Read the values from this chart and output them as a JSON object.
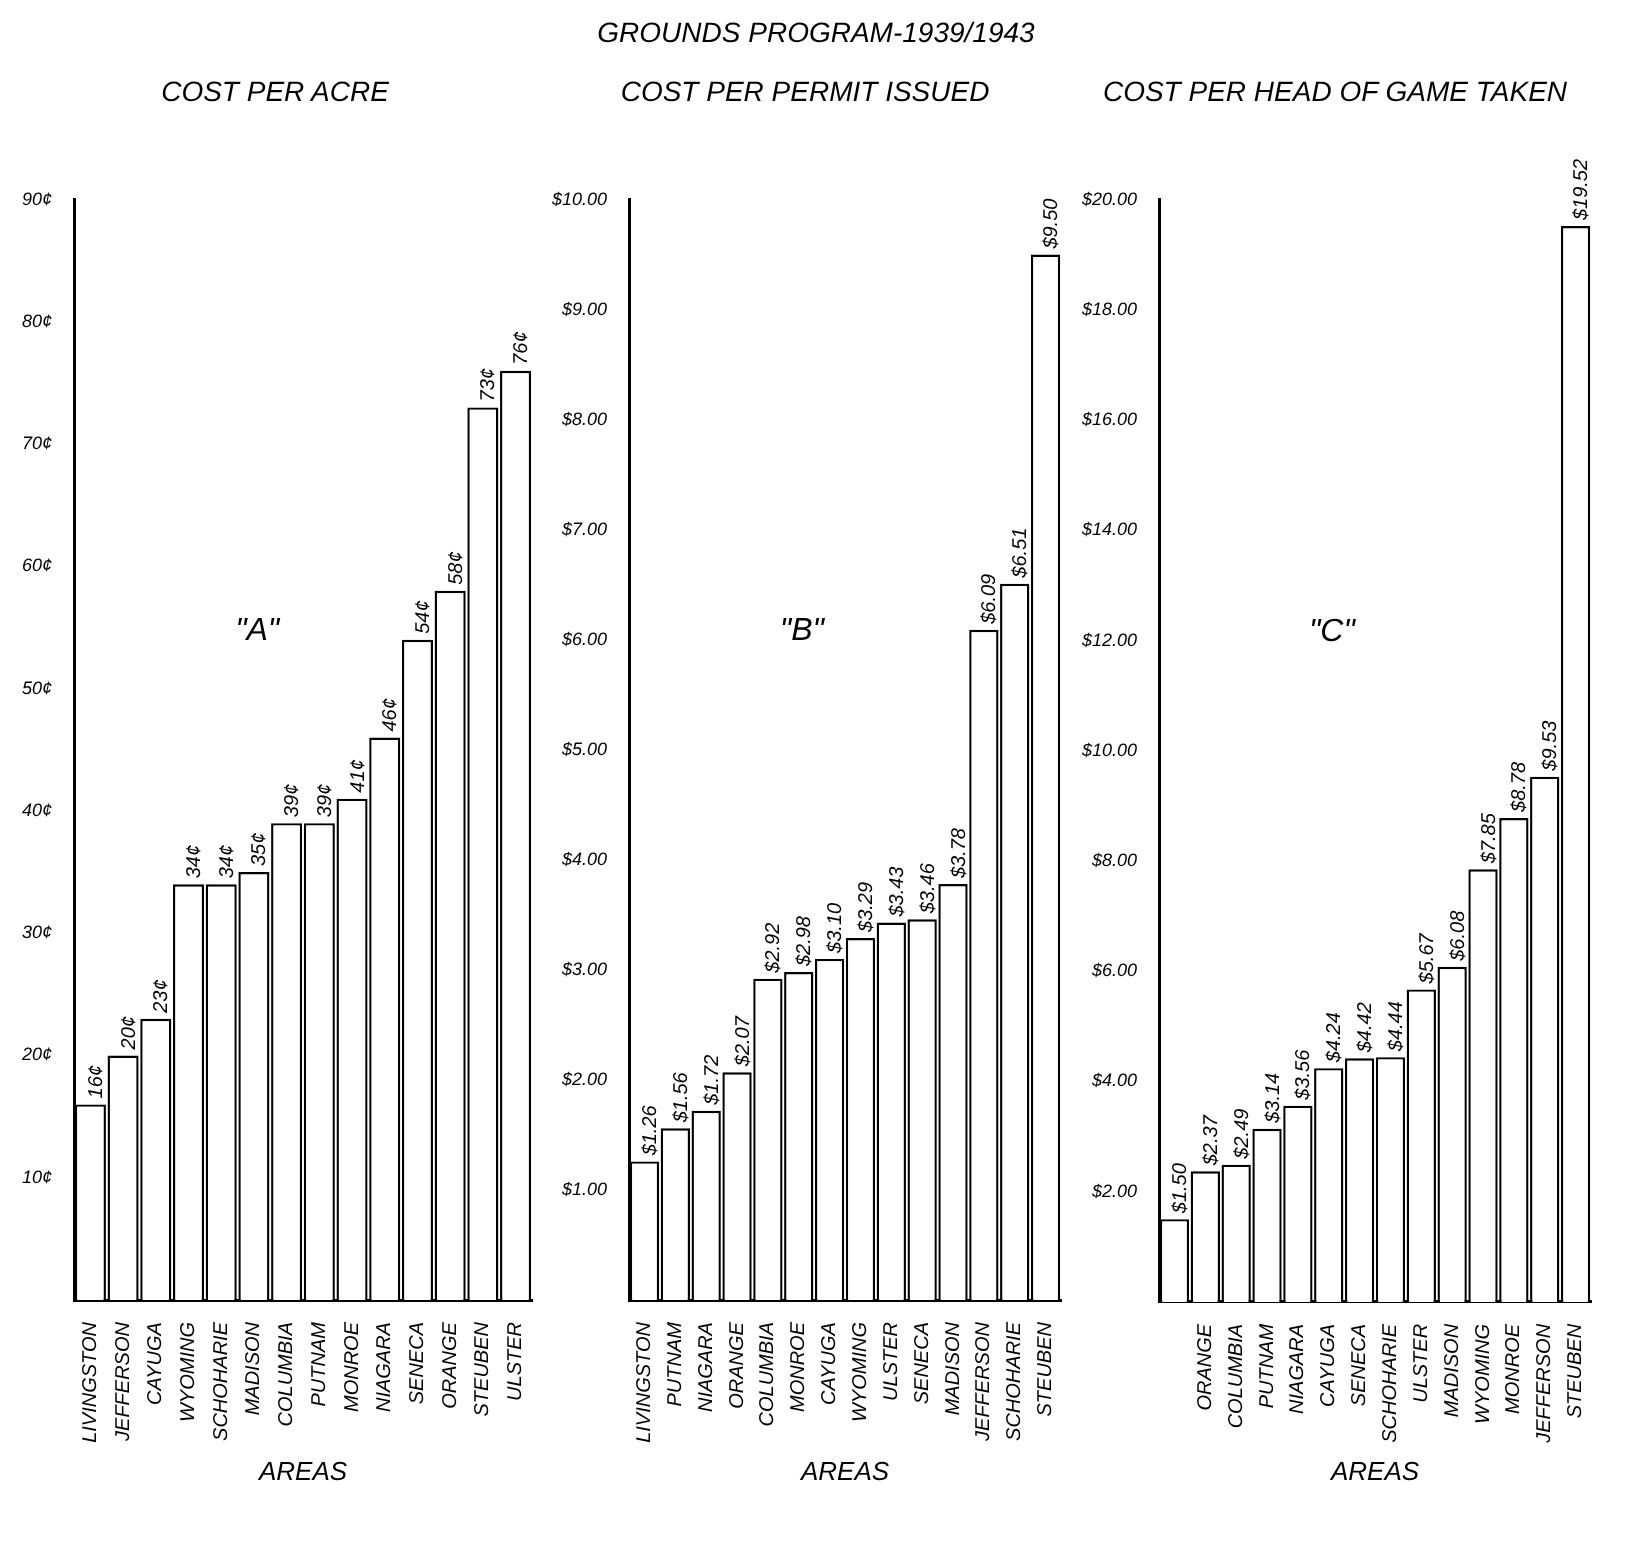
{
  "chart_data": [
    {
      "type": "bar",
      "title": "COST PER ACRE",
      "xlabel": "AREAS",
      "annotations": [
        "\"A\""
      ],
      "categories": [
        "LIVINGSTON",
        "JEFFERSON",
        "CAYUGA",
        "WYOMING",
        "SCHOHARIE",
        "MADISON",
        "COLUMBIA",
        "PUTNAM",
        "MONROE",
        "NIAGARA",
        "SENECA",
        "ORANGE",
        "STEUBEN",
        "ULSTER"
      ],
      "values": [
        16,
        20,
        23,
        34,
        34,
        35,
        39,
        39,
        41,
        46,
        54,
        58,
        73,
        76
      ],
      "value_labels": [
        "16¢",
        "20¢",
        "23¢",
        "34¢",
        "34¢",
        "35¢",
        "39¢",
        "39¢",
        "41¢",
        "46¢",
        "54¢",
        "58¢",
        "73¢",
        "76¢"
      ],
      "color": "#ffffff",
      "ylim": [
        0,
        90
      ],
      "yticks": [
        {
          "value": 10,
          "label": "10¢"
        },
        {
          "value": 20,
          "label": "20¢"
        },
        {
          "value": 30,
          "label": "30¢"
        },
        {
          "value": 40,
          "label": "40¢"
        },
        {
          "value": 50,
          "label": "50¢"
        },
        {
          "value": 60,
          "label": "60¢"
        },
        {
          "value": 70,
          "label": "70¢"
        },
        {
          "value": 80,
          "label": "80¢"
        },
        {
          "value": 90,
          "label": "90¢"
        }
      ]
    },
    {
      "type": "bar",
      "title": "COST PER PERMIT ISSUED",
      "xlabel": "AREAS",
      "annotations": [
        "GROUNDS PROGRAM-1939/1943",
        "\"B\""
      ],
      "categories": [
        "LIVINGSTON",
        "PUTNAM",
        "NIAGARA",
        "ORANGE",
        "COLUMBIA",
        "MONROE",
        "CAYUGA",
        "WYOMING",
        "ULSTER",
        "SENECA",
        "MADISON",
        "JEFFERSON",
        "SCHOHARIE",
        "STEUBEN"
      ],
      "values": [
        1.26,
        1.56,
        1.72,
        2.07,
        2.92,
        2.98,
        3.1,
        3.29,
        3.43,
        3.46,
        3.78,
        6.09,
        6.51,
        9.5
      ],
      "value_labels": [
        "$1.26",
        "$1.56",
        "$1.72",
        "$2.07",
        "$2.92",
        "$2.98",
        "$3.10",
        "$3.29",
        "$3.43",
        "$3.46",
        "$3.78",
        "$6.09",
        "$6.51",
        "$9.50"
      ],
      "color": "#ffffff",
      "ylim": [
        0,
        10
      ],
      "yticks": [
        {
          "value": 1,
          "label": "$1.00"
        },
        {
          "value": 2,
          "label": "$2.00"
        },
        {
          "value": 3,
          "label": "$3.00"
        },
        {
          "value": 4,
          "label": "$4.00"
        },
        {
          "value": 5,
          "label": "$5.00"
        },
        {
          "value": 6,
          "label": "$6.00"
        },
        {
          "value": 7,
          "label": "$7.00"
        },
        {
          "value": 8,
          "label": "$8.00"
        },
        {
          "value": 9,
          "label": "$9.00"
        },
        {
          "value": 10,
          "label": "$10.00"
        }
      ]
    },
    {
      "type": "bar",
      "title": "COST PER HEAD OF GAME TAKEN",
      "xlabel": "AREAS",
      "annotations": [
        "\"C\""
      ],
      "categories": [
        null,
        "ORANGE",
        "COLUMBIA",
        "PUTNAM",
        "NIAGARA",
        "CAYUGA",
        "SENECA",
        "SCHOHARIE",
        "ULSTER",
        "MADISON",
        "WYOMING",
        "MONROE",
        "JEFFERSON",
        "STEUBEN"
      ],
      "values": [
        1.5,
        2.37,
        2.49,
        3.14,
        3.56,
        4.24,
        4.42,
        4.44,
        5.67,
        6.08,
        7.85,
        8.78,
        9.53,
        19.52
      ],
      "value_labels": [
        "$1.50",
        "$2.37",
        "$2.49",
        "$3.14",
        "$3.56",
        "$4.24",
        "$4.42",
        "$4.44",
        "$5.67",
        "$6.08",
        "$7.85",
        "$8.78",
        "$9.53",
        "$19.52"
      ],
      "color": "#ffffff",
      "ylim": [
        0,
        20
      ],
      "yticks": [
        {
          "value": 2,
          "label": "$2.00"
        },
        {
          "value": 4,
          "label": "$4.00"
        },
        {
          "value": 6,
          "label": "$6.00"
        },
        {
          "value": 8,
          "label": "$8.00"
        },
        {
          "value": 10,
          "label": "$10.00"
        },
        {
          "value": 12,
          "label": "$12.00"
        },
        {
          "value": 14,
          "label": "$14.00"
        },
        {
          "value": 16,
          "label": "$16.00"
        },
        {
          "value": 18,
          "label": "$18.00"
        },
        {
          "value": 20,
          "label": "$20.00"
        }
      ]
    }
  ]
}
